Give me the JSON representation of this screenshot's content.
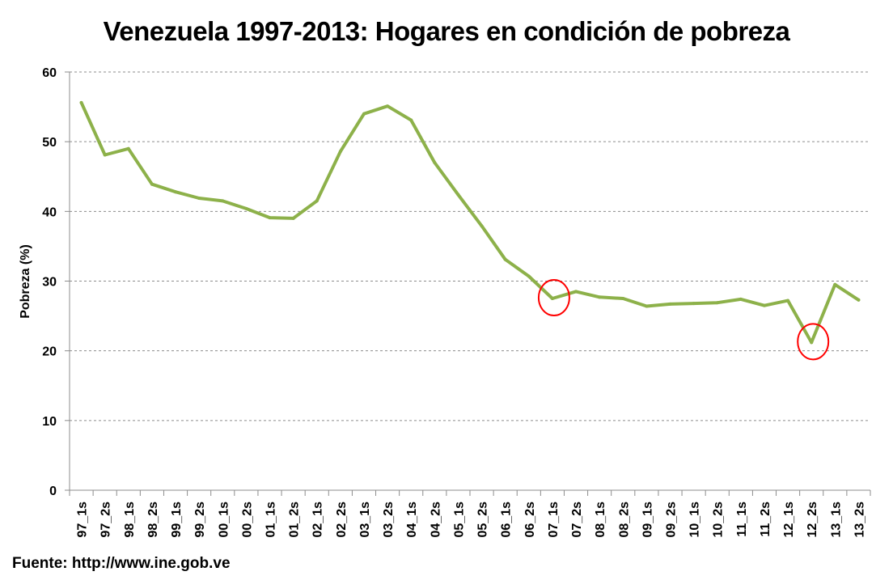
{
  "chart_data": {
    "type": "line",
    "title": "Venezuela 1997-2013: Hogares en condición de pobreza",
    "xlabel": "",
    "ylabel": "Pobreza (%)",
    "ylim": [
      0,
      60
    ],
    "yticks": [
      0,
      10,
      20,
      30,
      40,
      50,
      60
    ],
    "grid": true,
    "categories": [
      "97_1s",
      "97_2s",
      "98_1s",
      "98_2s",
      "99_1s",
      "99_2s",
      "00_1s",
      "00_2s",
      "01_1s",
      "01_2s",
      "02_1s",
      "02_2s",
      "03_1s",
      "03_2s",
      "04_1s",
      "04_2s",
      "05_1s",
      "05_2s",
      "06_1s",
      "06_2s",
      "07_1s",
      "07_2s",
      "08_1s",
      "08_2s",
      "09_1s",
      "09_2s",
      "10_1s",
      "10_2s",
      "11_1s",
      "11_2s",
      "12_1s",
      "12_2s",
      "13_1s",
      "13_2s"
    ],
    "series": [
      {
        "color": "#8db14a",
        "values": [
          55.6,
          48.1,
          49.0,
          43.9,
          42.8,
          41.9,
          41.5,
          40.4,
          39.1,
          39.0,
          41.5,
          48.6,
          54.0,
          55.1,
          53.1,
          47.0,
          42.4,
          37.9,
          33.1,
          30.7,
          27.5,
          28.5,
          27.7,
          27.5,
          26.4,
          26.7,
          26.8,
          26.9,
          27.4,
          26.5,
          27.2,
          21.2,
          29.5,
          27.3
        ]
      }
    ],
    "highlights": [
      {
        "category": "07_1s",
        "value": 27.5,
        "color": "#ff0000"
      },
      {
        "category": "12_2s",
        "value": 21.2,
        "color": "#ff0000"
      }
    ]
  },
  "source_note": "Fuente:  http://www.ine.gob.ve"
}
